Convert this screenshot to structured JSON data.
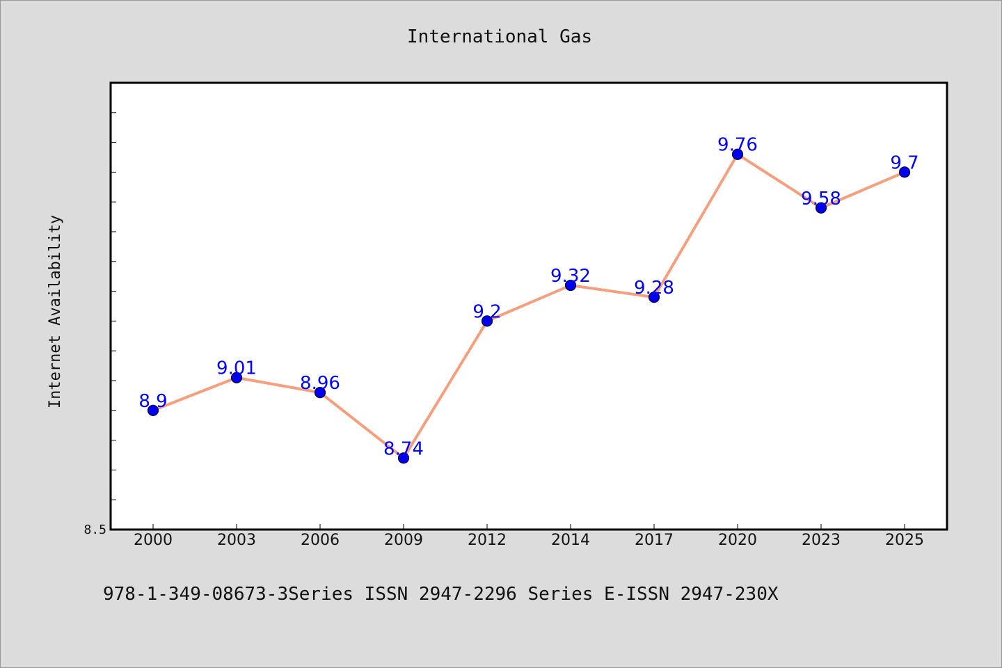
{
  "chart_data": {
    "type": "line",
    "title": "International Gas",
    "xlabel": "",
    "ylabel": "Internet Availability",
    "categories": [
      "2000",
      "2003",
      "2006",
      "2009",
      "2012",
      "2014",
      "2017",
      "2020",
      "2023",
      "2025"
    ],
    "series": [
      {
        "values": [
          8.9,
          9.01,
          8.96,
          8.74,
          9.2,
          9.32,
          9.28,
          9.76,
          9.58,
          9.7
        ]
      }
    ],
    "data_labels": [
      "8.9",
      "9.01",
      "8.96",
      "8.74",
      "9.2",
      "9.32",
      "9.28",
      "9.76",
      "9.58",
      "9.7"
    ],
    "ylim": [
      8.5,
      10.0
    ],
    "yticks_labeled": [
      {
        "value": 8.5,
        "label": "8.5"
      }
    ],
    "yticks_minor_step": 0.1,
    "grid": false,
    "colors": {
      "background": "#dcdcdc",
      "plot_background": "#ffffff",
      "line": "#f4a07f",
      "marker": "#0000ee",
      "marker_edge": "#000033",
      "label": "#0000ff"
    }
  },
  "footer": {
    "text": "978-1-349-08673-3Series ISSN 2947-2296 Series E-ISSN 2947-230X"
  }
}
